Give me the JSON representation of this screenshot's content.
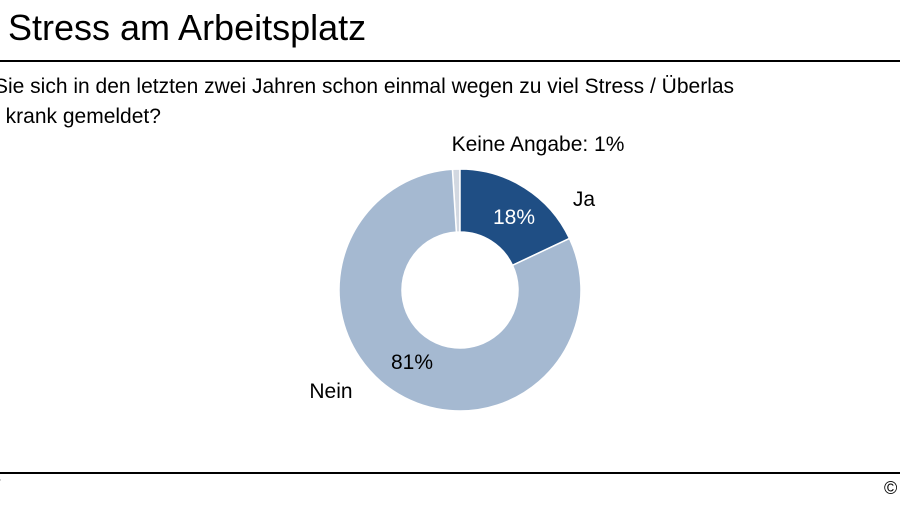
{
  "page": {
    "title": ": Stress am Arbeitsplatz",
    "question_line1": "Sie sich in den letzten zwei Jahren schon einmal wegen zu viel Stress / Überlas",
    "question_line2": "/ krank gemeldet?",
    "footer_left": "/",
    "footer_right": "©"
  },
  "colors": {
    "ja": "#1f4e84",
    "nein": "#a5b9d1",
    "keine_angabe": "#d2d8e1",
    "rules": "#000000"
  },
  "chart_data": {
    "type": "pie",
    "donut": true,
    "title": "",
    "slices": [
      {
        "label": "Keine Angabe",
        "value": 1,
        "value_label": "",
        "outside_label": "Keine Angabe: 1%",
        "color": "#d2d8e1"
      },
      {
        "label": "Ja",
        "value": 18,
        "value_label": "18%",
        "outside_label": "Ja",
        "color": "#1f4e84",
        "text_color": "#ffffff"
      },
      {
        "label": "Nein",
        "value": 81,
        "value_label": "81%",
        "outside_label": "Nein",
        "color": "#a5b9d1",
        "text_color": "#000000"
      }
    ]
  }
}
